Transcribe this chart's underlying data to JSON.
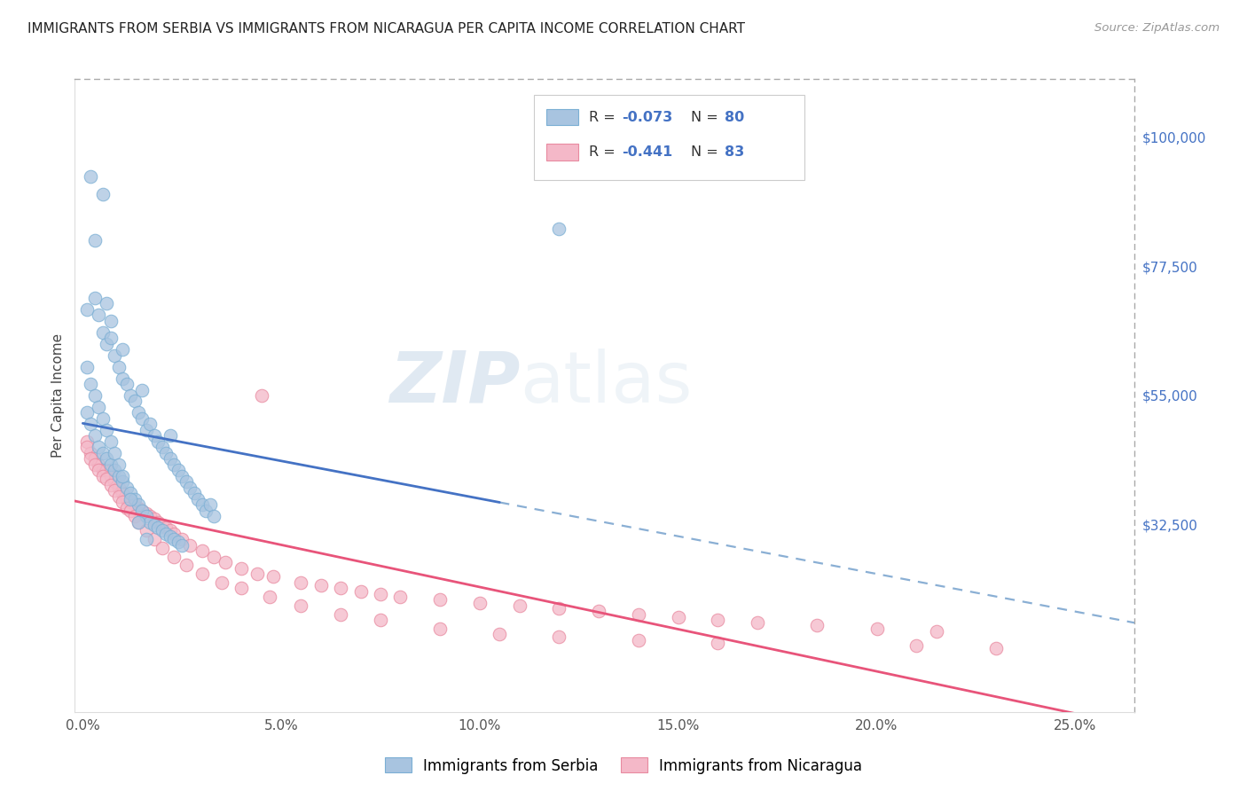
{
  "title": "IMMIGRANTS FROM SERBIA VS IMMIGRANTS FROM NICARAGUA PER CAPITA INCOME CORRELATION CHART",
  "source": "Source: ZipAtlas.com",
  "xlabel_ticks": [
    "0.0%",
    "5.0%",
    "10.0%",
    "15.0%",
    "20.0%",
    "25.0%"
  ],
  "xlabel_vals": [
    0.0,
    0.05,
    0.1,
    0.15,
    0.2,
    0.25
  ],
  "ylabel": "Per Capita Income",
  "ylabel_ticks_labels": [
    "$100,000",
    "$77,500",
    "$55,000",
    "$32,500"
  ],
  "ylabel_ticks_vals": [
    100000,
    77500,
    55000,
    32500
  ],
  "ylim": [
    0,
    110000
  ],
  "xlim": [
    -0.002,
    0.265
  ],
  "serbia_color": "#a8c4e0",
  "nicaragua_color": "#f4b8c8",
  "serbia_edge": "#7bafd4",
  "nicaragua_edge": "#e88aa0",
  "trend_serbia_color": "#4472c4",
  "trend_nicaragua_color": "#e8547a",
  "trend_serbia_dashed_color": "#8aafd4",
  "watermark_zip": "ZIP",
  "watermark_atlas": "atlas",
  "serbia_x": [
    0.002,
    0.005,
    0.003,
    0.001,
    0.003,
    0.004,
    0.005,
    0.006,
    0.006,
    0.007,
    0.007,
    0.008,
    0.009,
    0.01,
    0.01,
    0.011,
    0.012,
    0.013,
    0.014,
    0.015,
    0.015,
    0.016,
    0.017,
    0.018,
    0.019,
    0.02,
    0.021,
    0.022,
    0.022,
    0.023,
    0.024,
    0.025,
    0.026,
    0.027,
    0.028,
    0.029,
    0.03,
    0.031,
    0.032,
    0.033,
    0.001,
    0.002,
    0.003,
    0.004,
    0.005,
    0.006,
    0.007,
    0.008,
    0.009,
    0.01,
    0.011,
    0.012,
    0.013,
    0.014,
    0.015,
    0.016,
    0.017,
    0.018,
    0.019,
    0.02,
    0.021,
    0.022,
    0.023,
    0.024,
    0.025,
    0.001,
    0.002,
    0.003,
    0.004,
    0.005,
    0.006,
    0.007,
    0.008,
    0.009,
    0.01,
    0.012,
    0.014,
    0.016,
    0.12
  ],
  "serbia_y": [
    93000,
    90000,
    82000,
    70000,
    72000,
    69000,
    66000,
    71000,
    64000,
    68000,
    65000,
    62000,
    60000,
    63000,
    58000,
    57000,
    55000,
    54000,
    52000,
    51000,
    56000,
    49000,
    50000,
    48000,
    47000,
    46000,
    45000,
    44000,
    48000,
    43000,
    42000,
    41000,
    40000,
    39000,
    38000,
    37000,
    36000,
    35000,
    36000,
    34000,
    52000,
    50000,
    48000,
    46000,
    45000,
    44000,
    43000,
    42000,
    41000,
    40000,
    39000,
    38000,
    37000,
    36000,
    35000,
    34000,
    33000,
    32500,
    32000,
    31500,
    31000,
    30500,
    30000,
    29500,
    29000,
    60000,
    57000,
    55000,
    53000,
    51000,
    49000,
    47000,
    45000,
    43000,
    41000,
    37000,
    33000,
    30000,
    84000
  ],
  "nicaragua_x": [
    0.001,
    0.002,
    0.003,
    0.004,
    0.005,
    0.006,
    0.007,
    0.008,
    0.009,
    0.01,
    0.011,
    0.012,
    0.013,
    0.014,
    0.015,
    0.016,
    0.017,
    0.018,
    0.019,
    0.02,
    0.021,
    0.022,
    0.023,
    0.025,
    0.027,
    0.03,
    0.033,
    0.036,
    0.04,
    0.044,
    0.048,
    0.055,
    0.06,
    0.065,
    0.07,
    0.075,
    0.08,
    0.09,
    0.1,
    0.11,
    0.12,
    0.13,
    0.14,
    0.15,
    0.16,
    0.17,
    0.185,
    0.2,
    0.215,
    0.001,
    0.002,
    0.003,
    0.004,
    0.005,
    0.006,
    0.007,
    0.008,
    0.009,
    0.01,
    0.011,
    0.012,
    0.013,
    0.014,
    0.016,
    0.018,
    0.02,
    0.023,
    0.026,
    0.03,
    0.035,
    0.04,
    0.047,
    0.055,
    0.065,
    0.075,
    0.09,
    0.105,
    0.12,
    0.14,
    0.16,
    0.21,
    0.23,
    0.045
  ],
  "nicaragua_y": [
    47000,
    45000,
    44000,
    43000,
    42000,
    42000,
    41000,
    40000,
    39000,
    38000,
    37000,
    36500,
    36000,
    35500,
    35000,
    34500,
    34000,
    33500,
    33000,
    32500,
    32000,
    31500,
    31000,
    30000,
    29000,
    28000,
    27000,
    26000,
    25000,
    24000,
    23500,
    22500,
    22000,
    21500,
    21000,
    20500,
    20000,
    19500,
    19000,
    18500,
    18000,
    17500,
    17000,
    16500,
    16000,
    15500,
    15000,
    14500,
    14000,
    46000,
    44000,
    43000,
    42000,
    41000,
    40500,
    39500,
    38500,
    37500,
    36500,
    35500,
    35000,
    34000,
    33000,
    31500,
    30000,
    28500,
    27000,
    25500,
    24000,
    22500,
    21500,
    20000,
    18500,
    17000,
    16000,
    14500,
    13500,
    13000,
    12500,
    12000,
    11500,
    11000,
    55000
  ],
  "trend_serbia_solid_end": 0.105,
  "trend_serbia_start": 0.0,
  "trend_serbia_end": 0.265
}
